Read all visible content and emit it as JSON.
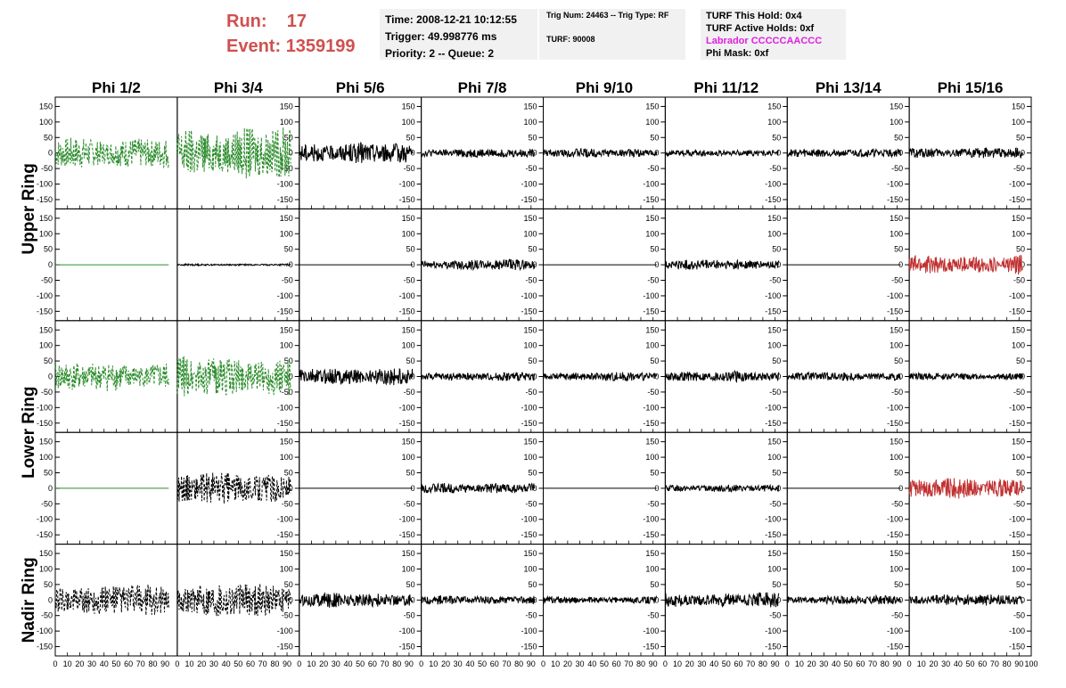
{
  "header": {
    "run_label": "Run:",
    "run_value": "17",
    "event_label": "Event:",
    "event_value": "1359199"
  },
  "info_time": {
    "line1": "Time: 2008-12-21 10:12:55",
    "line2": "Trigger: 49.998776 ms",
    "line3": "Priority: 2 -- Queue: 2"
  },
  "info_trig": {
    "line1": "Trig Num: 24463 -- Trig Type: RF",
    "line2": "TURF: 90008"
  },
  "info_turf": {
    "line1": "TURF This Hold: 0x4",
    "line2": "TURF Active Holds: 0xf",
    "line3": "Labrador CCCCCAACCC",
    "line4": "Phi Mask: 0xf"
  },
  "colors": {
    "green": "#2a8c2a",
    "red": "#c03030",
    "black": "#000000",
    "label_red": "#d0504f",
    "magenta": "#e020e0"
  },
  "chart_data": {
    "type": "line",
    "columns": [
      "Phi 1/2",
      "Phi 3/4",
      "Phi 5/6",
      "Phi 7/8",
      "Phi 9/10",
      "Phi 11/12",
      "Phi 13/14",
      "Phi 15/16"
    ],
    "ring_labels": [
      {
        "name": "Upper Ring",
        "rows": [
          0,
          1
        ]
      },
      {
        "name": "Lower Ring",
        "rows": [
          2,
          3
        ]
      },
      {
        "name": "Nadir Ring",
        "rows": [
          4
        ]
      }
    ],
    "ylim": [
      -180,
      180
    ],
    "y_ticks": [
      -150,
      -100,
      -50,
      0,
      50,
      100,
      150
    ],
    "xlim": [
      0,
      100
    ],
    "x_ticks": [
      0,
      10,
      20,
      30,
      40,
      50,
      60,
      70,
      80,
      90,
      100
    ],
    "x_tick_labels": [
      "0",
      "10",
      "20",
      "30",
      "40",
      "50",
      "60",
      "70",
      "80",
      "90",
      "100"
    ],
    "grid": false,
    "panels": [
      [
        {
          "style": "green-dashed",
          "amplitude": 55
        },
        {
          "style": "green-dashed",
          "amplitude": 90
        },
        {
          "style": "black",
          "amplitude": 35
        },
        {
          "style": "black",
          "amplitude": 15
        },
        {
          "style": "black",
          "amplitude": 15
        },
        {
          "style": "black",
          "amplitude": 12
        },
        {
          "style": "black",
          "amplitude": 15
        },
        {
          "style": "black",
          "amplitude": 18
        }
      ],
      [
        {
          "style": "green-flat",
          "amplitude": 0
        },
        {
          "style": "black",
          "amplitude": 3
        },
        {
          "style": "black-flat",
          "amplitude": 0
        },
        {
          "style": "black",
          "amplitude": 18
        },
        {
          "style": "black-flat",
          "amplitude": 0
        },
        {
          "style": "black",
          "amplitude": 18
        },
        {
          "style": "black-flat",
          "amplitude": 0
        },
        {
          "style": "red",
          "amplitude": 32
        }
      ],
      [
        {
          "style": "green-dashed",
          "amplitude": 50
        },
        {
          "style": "green-dashed",
          "amplitude": 70
        },
        {
          "style": "black",
          "amplitude": 30
        },
        {
          "style": "black",
          "amplitude": 15
        },
        {
          "style": "black",
          "amplitude": 15
        },
        {
          "style": "black",
          "amplitude": 18
        },
        {
          "style": "black",
          "amplitude": 15
        },
        {
          "style": "black",
          "amplitude": 12
        }
      ],
      [
        {
          "style": "green-flat",
          "amplitude": 0
        },
        {
          "style": "black-dashed",
          "amplitude": 55
        },
        {
          "style": "black-flat",
          "amplitude": 0
        },
        {
          "style": "black",
          "amplitude": 18
        },
        {
          "style": "black-flat",
          "amplitude": 0
        },
        {
          "style": "black",
          "amplitude": 12
        },
        {
          "style": "black-flat",
          "amplitude": 0
        },
        {
          "style": "red",
          "amplitude": 35
        }
      ],
      [
        {
          "style": "black-dashed",
          "amplitude": 55
        },
        {
          "style": "black-dashed",
          "amplitude": 60
        },
        {
          "style": "black",
          "amplitude": 25
        },
        {
          "style": "black",
          "amplitude": 15
        },
        {
          "style": "black",
          "amplitude": 12
        },
        {
          "style": "black",
          "amplitude": 25
        },
        {
          "style": "black",
          "amplitude": 15
        },
        {
          "style": "black",
          "amplitude": 20
        }
      ]
    ]
  }
}
